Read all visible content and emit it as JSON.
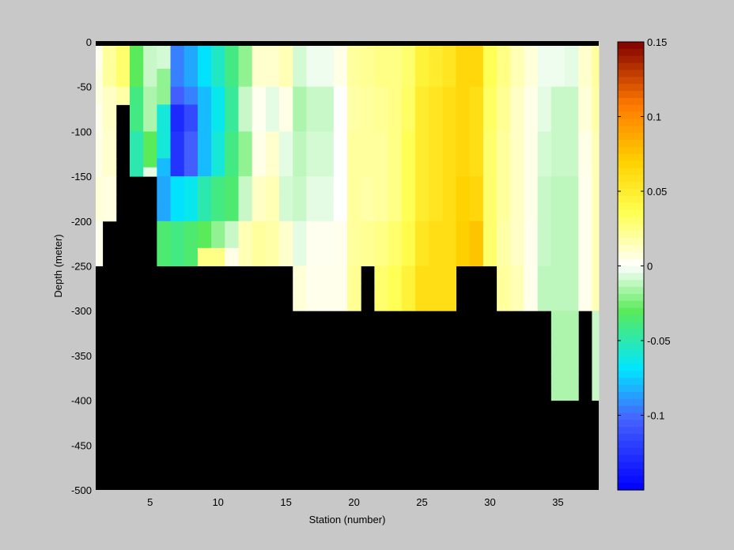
{
  "chart_data": {
    "type": "heatmap",
    "title": "",
    "xlabel": "Station (number)",
    "ylabel": "Depth (meter)",
    "xlim": [
      1,
      38
    ],
    "ylim": [
      -500,
      0
    ],
    "xticks": [
      5,
      10,
      15,
      20,
      25,
      30,
      35
    ],
    "yticks": [
      0,
      -50,
      -100,
      -150,
      -200,
      -250,
      -300,
      -350,
      -400,
      -450,
      -500
    ],
    "clim": [
      -0.15,
      0.15
    ],
    "colorbar_ticks": [
      0.15,
      0.1,
      0.05,
      0,
      -0.05,
      -0.1
    ],
    "colormap": "blue-cyan-green-white-yellow-orange-darkred",
    "mask_color": "#000000",
    "grid": false,
    "cell_depth_step_m": 10,
    "depth_rows_m": [
      -5,
      -15,
      -25,
      -35,
      -45,
      -55,
      -65,
      -75,
      -85,
      -95,
      -105,
      -115,
      -125,
      -135,
      -145,
      -155,
      -165,
      -175,
      -185,
      -195,
      -205,
      -215,
      -225,
      -235,
      -245,
      -255,
      -265,
      -275,
      -285,
      -295,
      -305,
      -315,
      -325,
      -335,
      -345,
      -355,
      -365,
      -375,
      -385,
      -395
    ],
    "stations": [
      {
        "x": 1,
        "bottom": -250,
        "values": [
          [
            0,
            0.003
          ],
          [
            -30,
            0.006
          ],
          [
            -70,
            0.003
          ],
          [
            -100,
            0.005
          ],
          [
            -150,
            0.008
          ],
          [
            -200,
            0.003
          ]
        ]
      },
      {
        "x": 2,
        "bottom": -200,
        "values": [
          [
            0,
            0.02
          ],
          [
            -50,
            0.012
          ],
          [
            -100,
            0.01
          ],
          [
            -150,
            0.006
          ]
        ]
      },
      {
        "x": 3,
        "bottom": -70,
        "values": [
          [
            0,
            0.03
          ],
          [
            -50,
            0.018
          ]
        ]
      },
      {
        "x": 4,
        "bottom": -150,
        "values": [
          [
            0,
            -0.03
          ],
          [
            -50,
            -0.04
          ],
          [
            -100,
            -0.05
          ]
        ]
      },
      {
        "x": 5,
        "bottom": -150,
        "values": [
          [
            0,
            -0.01
          ],
          [
            -50,
            -0.015
          ],
          [
            -100,
            -0.03
          ],
          [
            -140,
            -0.005
          ]
        ]
      },
      {
        "x": 6,
        "bottom": -250,
        "values": [
          [
            0,
            -0.008
          ],
          [
            -30,
            -0.02
          ],
          [
            -70,
            -0.06
          ],
          [
            -130,
            -0.08
          ],
          [
            -150,
            -0.085
          ],
          [
            -200,
            -0.035
          ]
        ]
      },
      {
        "x": 7,
        "bottom": -250,
        "values": [
          [
            0,
            -0.095
          ],
          [
            -50,
            -0.105
          ],
          [
            -70,
            -0.13
          ],
          [
            -100,
            -0.125
          ],
          [
            -150,
            -0.07
          ],
          [
            -200,
            -0.04
          ]
        ]
      },
      {
        "x": 8,
        "bottom": -250,
        "values": [
          [
            0,
            -0.085
          ],
          [
            -50,
            -0.095
          ],
          [
            -70,
            -0.115
          ],
          [
            -100,
            -0.105
          ],
          [
            -150,
            -0.065
          ],
          [
            -200,
            -0.035
          ]
        ]
      },
      {
        "x": 9,
        "bottom": -250,
        "values": [
          [
            0,
            -0.07
          ],
          [
            -50,
            -0.08
          ],
          [
            -100,
            -0.08
          ],
          [
            -150,
            -0.05
          ],
          [
            -200,
            -0.03
          ],
          [
            -230,
            0.025
          ]
        ]
      },
      {
        "x": 10,
        "bottom": -250,
        "values": [
          [
            0,
            -0.055
          ],
          [
            -50,
            -0.065
          ],
          [
            -100,
            -0.06
          ],
          [
            -150,
            -0.04
          ],
          [
            -200,
            -0.02
          ],
          [
            -230,
            0.025
          ]
        ]
      },
      {
        "x": 11,
        "bottom": -250,
        "values": [
          [
            0,
            -0.04
          ],
          [
            -50,
            -0.045
          ],
          [
            -100,
            -0.04
          ],
          [
            -150,
            -0.035
          ],
          [
            -200,
            -0.01
          ],
          [
            -230,
            0.005
          ]
        ]
      },
      {
        "x": 12,
        "bottom": -250,
        "values": [
          [
            0,
            -0.02
          ],
          [
            -50,
            -0.01
          ],
          [
            -100,
            -0.02
          ],
          [
            -150,
            -0.01
          ],
          [
            -200,
            0.015
          ]
        ]
      },
      {
        "x": 13,
        "bottom": -250,
        "values": [
          [
            0,
            0.01
          ],
          [
            -50,
            0.003
          ],
          [
            -100,
            0.005
          ],
          [
            -150,
            0.012
          ],
          [
            -200,
            0.02
          ]
        ]
      },
      {
        "x": 14,
        "bottom": -250,
        "values": [
          [
            0,
            0.01
          ],
          [
            -50,
            -0.005
          ],
          [
            -100,
            0.01
          ],
          [
            -150,
            0.015
          ],
          [
            -200,
            0.018
          ]
        ]
      },
      {
        "x": 15,
        "bottom": -250,
        "values": [
          [
            0,
            0.015
          ],
          [
            -50,
            0.005
          ],
          [
            -100,
            -0.005
          ],
          [
            -150,
            -0.008
          ],
          [
            -200,
            0.01
          ]
        ]
      },
      {
        "x": 16,
        "bottom": -300,
        "values": [
          [
            0,
            -0.008
          ],
          [
            -50,
            -0.015
          ],
          [
            -100,
            -0.012
          ],
          [
            -150,
            -0.01
          ],
          [
            -200,
            -0.005
          ],
          [
            -250,
            0.008
          ]
        ]
      },
      {
        "x": 17,
        "bottom": -300,
        "values": [
          [
            0,
            -0.003
          ],
          [
            -50,
            -0.01
          ],
          [
            -100,
            -0.008
          ],
          [
            -150,
            -0.005
          ],
          [
            -200,
            0.003
          ],
          [
            -250,
            0.004
          ]
        ]
      },
      {
        "x": 18,
        "bottom": -300,
        "values": [
          [
            0,
            -0.003
          ],
          [
            -50,
            -0.01
          ],
          [
            -100,
            -0.008
          ],
          [
            -150,
            -0.005
          ],
          [
            -200,
            0.003
          ],
          [
            -250,
            0.004
          ]
        ]
      },
      {
        "x": 19,
        "bottom": -300,
        "values": [
          [
            0,
            0.005
          ],
          [
            -50,
            0.0
          ],
          [
            -100,
            0.0
          ],
          [
            -150,
            0.0
          ],
          [
            -200,
            0.004
          ],
          [
            -250,
            0.004
          ]
        ]
      },
      {
        "x": 20,
        "bottom": -300,
        "values": [
          [
            0,
            0.02
          ],
          [
            -50,
            0.018
          ],
          [
            -100,
            0.02
          ],
          [
            -150,
            0.02
          ],
          [
            -200,
            0.02
          ],
          [
            -250,
            0.022
          ]
        ]
      },
      {
        "x": 21,
        "bottom": -250,
        "values": [
          [
            0,
            0.022
          ],
          [
            -50,
            0.02
          ],
          [
            -100,
            0.02
          ],
          [
            -150,
            0.018
          ],
          [
            -200,
            0.022
          ]
        ]
      },
      {
        "x": 22,
        "bottom": -300,
        "values": [
          [
            0,
            0.025
          ],
          [
            -50,
            0.022
          ],
          [
            -100,
            0.02
          ],
          [
            -150,
            0.02
          ],
          [
            -200,
            0.025
          ],
          [
            -250,
            0.03
          ]
        ]
      },
      {
        "x": 23,
        "bottom": -300,
        "values": [
          [
            0,
            0.025
          ],
          [
            -50,
            0.025
          ],
          [
            -100,
            0.025
          ],
          [
            -150,
            0.025
          ],
          [
            -200,
            0.03
          ],
          [
            -250,
            0.035
          ]
        ]
      },
      {
        "x": 24,
        "bottom": -300,
        "values": [
          [
            0,
            0.03
          ],
          [
            -50,
            0.032
          ],
          [
            -100,
            0.035
          ],
          [
            -150,
            0.035
          ],
          [
            -200,
            0.038
          ],
          [
            -250,
            0.045
          ]
        ]
      },
      {
        "x": 25,
        "bottom": -300,
        "values": [
          [
            0,
            0.045
          ],
          [
            -50,
            0.05
          ],
          [
            -100,
            0.05
          ],
          [
            -150,
            0.05
          ],
          [
            -200,
            0.055
          ],
          [
            -250,
            0.06
          ]
        ]
      },
      {
        "x": 26,
        "bottom": -300,
        "values": [
          [
            0,
            0.05
          ],
          [
            -50,
            0.055
          ],
          [
            -100,
            0.055
          ],
          [
            -150,
            0.055
          ],
          [
            -200,
            0.06
          ],
          [
            -250,
            0.06
          ]
        ]
      },
      {
        "x": 27,
        "bottom": -300,
        "values": [
          [
            0,
            0.055
          ],
          [
            -50,
            0.06
          ],
          [
            -100,
            0.06
          ],
          [
            -150,
            0.06
          ],
          [
            -200,
            0.06
          ],
          [
            -250,
            0.06
          ]
        ]
      },
      {
        "x": 28,
        "bottom": -250,
        "values": [
          [
            0,
            0.065
          ],
          [
            -50,
            0.065
          ],
          [
            -100,
            0.065
          ],
          [
            -150,
            0.068
          ],
          [
            -200,
            0.07
          ]
        ]
      },
      {
        "x": 29,
        "bottom": -250,
        "values": [
          [
            0,
            0.065
          ],
          [
            -50,
            0.06
          ],
          [
            -100,
            0.06
          ],
          [
            -150,
            0.065
          ],
          [
            -200,
            0.075
          ]
        ]
      },
      {
        "x": 30,
        "bottom": -250,
        "values": [
          [
            0,
            0.035
          ],
          [
            -50,
            0.032
          ],
          [
            -100,
            0.03
          ],
          [
            -150,
            0.03
          ],
          [
            -200,
            0.03
          ]
        ]
      },
      {
        "x": 31,
        "bottom": -300,
        "values": [
          [
            0,
            0.025
          ],
          [
            -50,
            0.022
          ],
          [
            -100,
            0.02
          ],
          [
            -150,
            0.02
          ],
          [
            -200,
            0.018
          ],
          [
            -250,
            0.02
          ]
        ]
      },
      {
        "x": 32,
        "bottom": -300,
        "values": [
          [
            0,
            0.015
          ],
          [
            -50,
            0.012
          ],
          [
            -100,
            0.012
          ],
          [
            -150,
            0.012
          ],
          [
            -200,
            0.012
          ],
          [
            -250,
            0.015
          ]
        ]
      },
      {
        "x": 33,
        "bottom": -300,
        "values": [
          [
            0,
            0.008
          ],
          [
            -50,
            0.005
          ],
          [
            -100,
            0.005
          ],
          [
            -150,
            0.005
          ],
          [
            -200,
            0.004
          ],
          [
            -250,
            0.004
          ]
        ]
      },
      {
        "x": 34,
        "bottom": -300,
        "values": [
          [
            0,
            -0.003
          ],
          [
            -50,
            -0.005
          ],
          [
            -100,
            -0.008
          ],
          [
            -150,
            -0.01
          ],
          [
            -200,
            -0.01
          ],
          [
            -250,
            -0.012
          ]
        ]
      },
      {
        "x": 35,
        "bottom": -400,
        "values": [
          [
            0,
            -0.003
          ],
          [
            -50,
            -0.01
          ],
          [
            -100,
            -0.01
          ],
          [
            -150,
            -0.012
          ],
          [
            -200,
            -0.012
          ],
          [
            -250,
            -0.012
          ],
          [
            -300,
            -0.015
          ],
          [
            -350,
            -0.015
          ]
        ]
      },
      {
        "x": 36,
        "bottom": -400,
        "values": [
          [
            0,
            -0.005
          ],
          [
            -50,
            -0.01
          ],
          [
            -100,
            -0.01
          ],
          [
            -150,
            -0.012
          ],
          [
            -200,
            -0.012
          ],
          [
            -250,
            -0.012
          ],
          [
            -300,
            -0.015
          ],
          [
            -350,
            -0.015
          ]
        ]
      },
      {
        "x": 37,
        "bottom": -300,
        "values": [
          [
            0,
            0.01
          ],
          [
            -50,
            0.008
          ],
          [
            -100,
            0.005
          ],
          [
            -150,
            0.004
          ],
          [
            -200,
            0.004
          ],
          [
            -250,
            0.004
          ]
        ]
      },
      {
        "x": 38,
        "bottom": -400,
        "values": [
          [
            0,
            0.02
          ],
          [
            -50,
            0.018
          ],
          [
            -100,
            0.015
          ],
          [
            -150,
            0.015
          ],
          [
            -200,
            0.015
          ],
          [
            -250,
            0.015
          ],
          [
            -300,
            -0.01
          ],
          [
            -350,
            -0.01
          ]
        ]
      }
    ]
  }
}
